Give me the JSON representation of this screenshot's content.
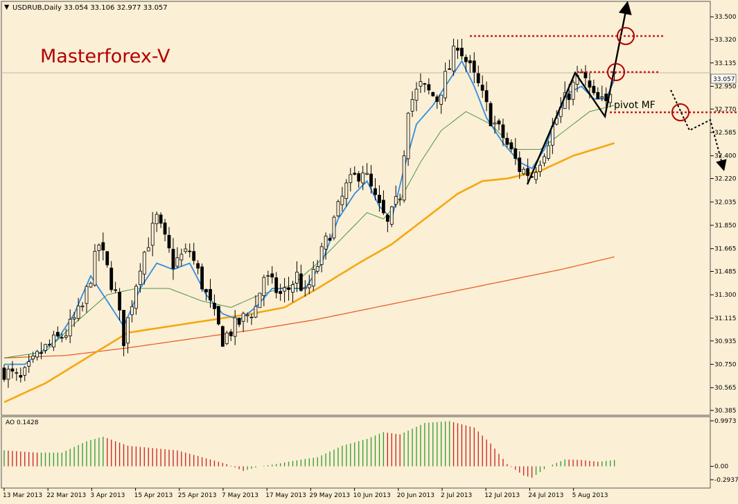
{
  "header": {
    "symbol_line": "USDRUB,Daily  33.054 33.106 32.977 33.057",
    "watermark": "Masterforex-V",
    "pivot_label": "pivot MF",
    "current_price": "33.057"
  },
  "colors": {
    "background": "#fbefd5",
    "bull_candle": "#fbefd5",
    "bear_candle": "#000000",
    "ma_fast": "#2f8de4",
    "ma_mid": "#3a8a3a",
    "ma_slow": "#f5a70f",
    "ma_long": "#e8571e",
    "ao_up": "#2e9a2e",
    "ao_down": "#c81e1e",
    "level_line": "#c81e1e",
    "watermark": "#b30000"
  },
  "chart_data": [
    {
      "type": "candlestick",
      "title": "USDRUB,Daily",
      "ohlc_last": {
        "open": 33.054,
        "high": 33.106,
        "low": 32.977,
        "close": 33.057
      },
      "ylim": [
        30.385,
        33.6
      ],
      "y_ticks": [
        "33.500",
        "33.320",
        "33.135",
        "32.950",
        "32.770",
        "32.585",
        "32.400",
        "32.220",
        "32.035",
        "31.850",
        "31.665",
        "31.485",
        "31.300",
        "31.115",
        "30.935",
        "30.750",
        "30.565",
        "30.385"
      ],
      "x_ticks": [
        "13 Mar 2013",
        "22 Mar 2013",
        "3 Apr 2013",
        "15 Apr 2013",
        "25 Apr 2013",
        "7 May 2013",
        "17 May 2013",
        "29 May 2013",
        "10 Jun 2013",
        "20 Jun 2013",
        "2 Jul 2013",
        "12 Jul 2013",
        "24 Jul 2013",
        "5 Aug 2013"
      ],
      "anchors": [
        [
          0,
          30.7
        ],
        [
          4,
          30.62
        ],
        [
          9,
          30.85
        ],
        [
          15,
          31.0
        ],
        [
          19,
          31.2
        ],
        [
          23,
          31.7
        ],
        [
          27,
          31.3
        ],
        [
          29,
          30.95
        ],
        [
          33,
          31.55
        ],
        [
          37,
          31.9
        ],
        [
          41,
          31.55
        ],
        [
          45,
          31.65
        ],
        [
          49,
          31.3
        ],
        [
          53,
          30.95
        ],
        [
          56,
          31.05
        ],
        [
          61,
          31.2
        ],
        [
          63,
          31.45
        ],
        [
          67,
          31.3
        ],
        [
          69,
          31.35
        ],
        [
          71,
          31.45
        ],
        [
          73,
          31.3
        ],
        [
          75,
          31.45
        ],
        [
          79,
          31.8
        ],
        [
          83,
          32.15
        ],
        [
          87,
          32.3
        ],
        [
          90,
          32.05
        ],
        [
          93,
          31.85
        ],
        [
          96,
          32.1
        ],
        [
          98,
          32.8
        ],
        [
          101,
          32.95
        ],
        [
          105,
          32.85
        ],
        [
          108,
          33.1
        ],
        [
          110,
          33.3
        ],
        [
          112,
          33.15
        ],
        [
          115,
          32.95
        ],
        [
          118,
          32.7
        ],
        [
          121,
          32.55
        ],
        [
          125,
          32.3
        ],
        [
          128,
          32.25
        ],
        [
          131,
          32.45
        ],
        [
          134,
          32.7
        ],
        [
          137,
          32.9
        ],
        [
          140,
          33.05
        ],
        [
          143,
          32.85
        ],
        [
          146,
          32.8
        ],
        [
          148,
          33.057
        ]
      ],
      "ma_fast_anchors": [
        [
          0,
          30.75
        ],
        [
          5,
          30.75
        ],
        [
          9,
          30.85
        ],
        [
          13,
          30.95
        ],
        [
          17,
          31.15
        ],
        [
          21,
          31.45
        ],
        [
          25,
          31.25
        ],
        [
          29,
          31.05
        ],
        [
          33,
          31.35
        ],
        [
          37,
          31.55
        ],
        [
          41,
          31.5
        ],
        [
          45,
          31.55
        ],
        [
          49,
          31.3
        ],
        [
          53,
          31.15
        ],
        [
          57,
          31.1
        ],
        [
          61,
          31.2
        ],
        [
          65,
          31.35
        ],
        [
          69,
          31.35
        ],
        [
          73,
          31.35
        ],
        [
          77,
          31.55
        ],
        [
          81,
          31.9
        ],
        [
          85,
          32.1
        ],
        [
          88,
          32.2
        ],
        [
          91,
          32.0
        ],
        [
          94,
          31.9
        ],
        [
          97,
          32.3
        ],
        [
          100,
          32.65
        ],
        [
          104,
          32.8
        ],
        [
          108,
          33.0
        ],
        [
          111,
          33.15
        ],
        [
          114,
          32.95
        ],
        [
          117,
          32.7
        ],
        [
          121,
          32.5
        ],
        [
          125,
          32.35
        ],
        [
          128,
          32.3
        ],
        [
          131,
          32.45
        ],
        [
          134,
          32.7
        ],
        [
          137,
          32.9
        ],
        [
          140,
          32.95
        ],
        [
          143,
          32.85
        ],
        [
          146,
          32.85
        ],
        [
          148,
          33.0
        ]
      ],
      "ma_mid_anchors": [
        [
          0,
          30.8
        ],
        [
          10,
          30.85
        ],
        [
          18,
          31.1
        ],
        [
          25,
          31.3
        ],
        [
          32,
          31.35
        ],
        [
          40,
          31.35
        ],
        [
          48,
          31.25
        ],
        [
          55,
          31.2
        ],
        [
          62,
          31.3
        ],
        [
          70,
          31.38
        ],
        [
          76,
          31.55
        ],
        [
          82,
          31.75
        ],
        [
          88,
          31.95
        ],
        [
          92,
          31.9
        ],
        [
          96,
          32.05
        ],
        [
          101,
          32.35
        ],
        [
          106,
          32.6
        ],
        [
          112,
          32.75
        ],
        [
          118,
          32.65
        ],
        [
          124,
          32.45
        ],
        [
          130,
          32.45
        ],
        [
          136,
          32.6
        ],
        [
          142,
          32.75
        ],
        [
          148,
          32.8
        ]
      ],
      "ma_slow_anchors": [
        [
          0,
          30.45
        ],
        [
          10,
          30.6
        ],
        [
          20,
          30.8
        ],
        [
          30,
          31.0
        ],
        [
          40,
          31.05
        ],
        [
          50,
          31.1
        ],
        [
          60,
          31.15
        ],
        [
          68,
          31.2
        ],
        [
          76,
          31.35
        ],
        [
          86,
          31.55
        ],
        [
          94,
          31.7
        ],
        [
          102,
          31.9
        ],
        [
          110,
          32.1
        ],
        [
          116,
          32.2
        ],
        [
          122,
          32.22
        ],
        [
          130,
          32.28
        ],
        [
          138,
          32.4
        ],
        [
          148,
          32.5
        ]
      ],
      "ma_long_anchors": [
        [
          0,
          30.8
        ],
        [
          15,
          30.82
        ],
        [
          30,
          30.88
        ],
        [
          45,
          30.95
        ],
        [
          60,
          31.02
        ],
        [
          75,
          31.1
        ],
        [
          90,
          31.2
        ],
        [
          105,
          31.3
        ],
        [
          120,
          31.4
        ],
        [
          135,
          31.5
        ],
        [
          148,
          31.6
        ]
      ]
    },
    {
      "type": "bar",
      "title": "AO 0.1428",
      "ylim": [
        -0.2937,
        0.9973
      ],
      "y_ticks": [
        "0.9973",
        "0.00",
        "-0.2937"
      ],
      "anchors": [
        [
          0,
          0.35
        ],
        [
          8,
          0.3
        ],
        [
          14,
          0.3
        ],
        [
          20,
          0.55
        ],
        [
          24,
          0.65
        ],
        [
          30,
          0.45
        ],
        [
          36,
          0.4
        ],
        [
          42,
          0.35
        ],
        [
          48,
          0.2
        ],
        [
          54,
          0.05
        ],
        [
          58,
          -0.1
        ],
        [
          62,
          0.0
        ],
        [
          66,
          0.05
        ],
        [
          70,
          0.12
        ],
        [
          76,
          0.2
        ],
        [
          82,
          0.45
        ],
        [
          88,
          0.6
        ],
        [
          92,
          0.75
        ],
        [
          96,
          0.7
        ],
        [
          102,
          0.95
        ],
        [
          108,
          0.99
        ],
        [
          114,
          0.85
        ],
        [
          118,
          0.5
        ],
        [
          122,
          0.05
        ],
        [
          126,
          -0.2
        ],
        [
          128,
          -0.25
        ],
        [
          132,
          0.0
        ],
        [
          136,
          0.15
        ],
        [
          140,
          0.14
        ],
        [
          144,
          0.1
        ],
        [
          148,
          0.14
        ]
      ]
    }
  ]
}
